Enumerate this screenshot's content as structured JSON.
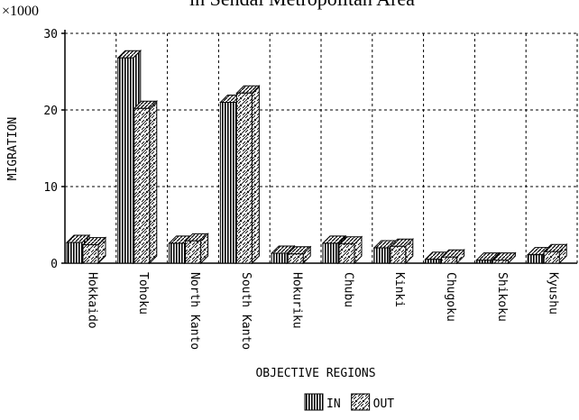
{
  "chart_data": {
    "type": "bar3d",
    "title": "in Sendai Metropolitan Area",
    "y_unit": "×1000",
    "y_label": "MIGRATION",
    "x_label": "OBJECTIVE REGIONS",
    "categories": [
      "Hokkaido",
      "Tohoku",
      "North Kanto",
      "South Kanto",
      "Hokuriku",
      "Chubu",
      "Kinki",
      "Chugoku",
      "Shikoku",
      "Kyushu"
    ],
    "series": [
      {
        "name": "IN",
        "pattern": "vertical-stripes",
        "values": [
          2.7,
          26.8,
          2.6,
          21.0,
          1.3,
          2.6,
          2.0,
          0.5,
          0.4,
          1.1
        ]
      },
      {
        "name": "OUT",
        "pattern": "cross-hatch",
        "values": [
          2.4,
          20.2,
          2.9,
          22.2,
          1.2,
          2.5,
          2.2,
          0.8,
          0.4,
          1.5
        ]
      }
    ],
    "ylim": [
      0,
      30
    ],
    "yticks": [
      0,
      10,
      20,
      30
    ],
    "grid": true
  }
}
